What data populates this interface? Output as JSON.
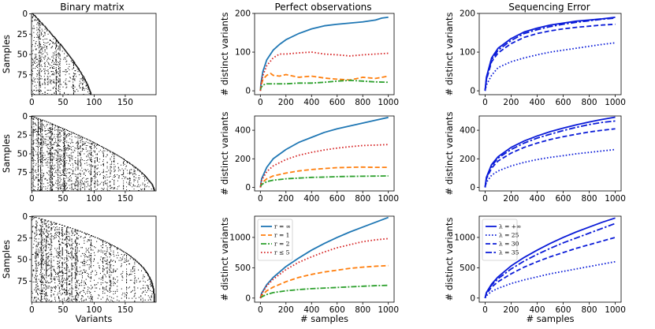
{
  "column_titles": [
    "Binary matrix",
    "Perfect observations",
    "Sequencing Error"
  ],
  "colors": {
    "perfect": {
      "r_inf": "#1f77b4",
      "r_1": "#ff7f0e",
      "r_2": "#2ca02c",
      "r_le_5": "#d62728"
    },
    "error": "#0a1bd8"
  },
  "chart_data": [
    {
      "id": "matrix-1",
      "type": "heatmap",
      "ylabel": "Samples",
      "xlabel": "",
      "xlim": [
        0,
        199
      ],
      "ylim": [
        0,
        99
      ],
      "xticks": [
        "0",
        "50",
        "100",
        "150"
      ],
      "yticks": [
        "0",
        "25",
        "50",
        "75"
      ],
      "staircase": {
        "rows": 100,
        "max_variant": 93,
        "curve_exponent": 1.35
      }
    },
    {
      "id": "matrix-2",
      "type": "heatmap",
      "ylabel": "Samples",
      "xlabel": "",
      "xlim": [
        0,
        199
      ],
      "ylim": [
        0,
        99
      ],
      "xticks": [
        "0",
        "50",
        "100",
        "150"
      ],
      "yticks": [
        "0",
        "25",
        "50",
        "75"
      ],
      "staircase": {
        "rows": 100,
        "max_variant": 195,
        "curve_exponent": 1.6
      }
    },
    {
      "id": "matrix-3",
      "type": "heatmap",
      "ylabel": "Samples",
      "xlabel": "Variants",
      "xlim": [
        0,
        199
      ],
      "ylim": [
        0,
        99
      ],
      "xticks": [
        "0",
        "50",
        "100",
        "150"
      ],
      "yticks": [
        "0",
        "25",
        "50",
        "75"
      ],
      "staircase": {
        "rows": 100,
        "max_variant": 195,
        "curve_exponent": 2.6
      }
    },
    {
      "id": "perfect-1",
      "type": "line",
      "xlabel": "",
      "ylabel": "# distinct variants",
      "xlim": [
        0,
        1000
      ],
      "ylim": [
        0,
        200
      ],
      "xticks": [
        0,
        200,
        400,
        600,
        800,
        1000
      ],
      "yticks": [
        0,
        100,
        200
      ],
      "series": [
        {
          "style": "r_inf",
          "x": [
            0,
            5,
            20,
            50,
            100,
            150,
            200,
            300,
            400,
            500,
            600,
            700,
            800,
            900,
            950,
            1000
          ],
          "y": [
            0,
            20,
            50,
            80,
            105,
            120,
            132,
            148,
            160,
            168,
            172,
            175,
            178,
            183,
            188,
            190
          ]
        },
        {
          "style": "r_1",
          "x": [
            0,
            5,
            20,
            50,
            80,
            100,
            150,
            200,
            300,
            400,
            500,
            600,
            700,
            800,
            900,
            1000
          ],
          "y": [
            0,
            12,
            30,
            40,
            45,
            40,
            38,
            42,
            35,
            38,
            33,
            30,
            28,
            35,
            32,
            38
          ]
        },
        {
          "style": "r_2",
          "x": [
            0,
            5,
            20,
            50,
            100,
            200,
            300,
            400,
            500,
            600,
            700,
            800,
            900,
            1000
          ],
          "y": [
            0,
            8,
            15,
            18,
            18,
            18,
            20,
            20,
            22,
            25,
            27,
            25,
            23,
            22
          ]
        },
        {
          "style": "r_le_5",
          "x": [
            0,
            5,
            20,
            50,
            100,
            150,
            200,
            300,
            400,
            500,
            600,
            700,
            800,
            900,
            1000
          ],
          "y": [
            0,
            15,
            40,
            65,
            85,
            95,
            95,
            98,
            100,
            95,
            93,
            90,
            93,
            95,
            97
          ]
        }
      ]
    },
    {
      "id": "perfect-2",
      "type": "line",
      "xlabel": "",
      "ylabel": "# distinct variants",
      "xlim": [
        0,
        1000
      ],
      "ylim": [
        0,
        500
      ],
      "xticks": [
        0,
        200,
        400,
        600,
        800,
        1000
      ],
      "yticks": [
        0,
        200,
        400
      ],
      "series": [
        {
          "style": "r_inf",
          "x": [
            0,
            10,
            50,
            100,
            200,
            300,
            400,
            500,
            600,
            700,
            800,
            900,
            1000
          ],
          "y": [
            0,
            60,
            140,
            200,
            265,
            315,
            350,
            385,
            410,
            430,
            450,
            470,
            490
          ]
        },
        {
          "style": "r_1",
          "x": [
            0,
            10,
            50,
            100,
            200,
            300,
            400,
            500,
            600,
            700,
            800,
            900,
            1000
          ],
          "y": [
            0,
            30,
            60,
            80,
            100,
            115,
            125,
            132,
            138,
            140,
            142,
            140,
            140
          ]
        },
        {
          "style": "r_2",
          "x": [
            0,
            10,
            50,
            100,
            200,
            300,
            400,
            500,
            600,
            700,
            800,
            900,
            1000
          ],
          "y": [
            0,
            20,
            40,
            50,
            60,
            65,
            70,
            72,
            75,
            77,
            78,
            79,
            80
          ]
        },
        {
          "style": "r_le_5",
          "x": [
            0,
            10,
            50,
            100,
            200,
            300,
            400,
            500,
            600,
            700,
            800,
            900,
            1000
          ],
          "y": [
            0,
            50,
            110,
            150,
            195,
            225,
            245,
            262,
            275,
            285,
            293,
            296,
            300
          ]
        }
      ]
    },
    {
      "id": "perfect-3",
      "type": "line",
      "xlabel": "# samples",
      "ylabel": "# distinct variants",
      "xlim": [
        0,
        1000
      ],
      "ylim": [
        0,
        1350
      ],
      "xticks": [
        0,
        200,
        400,
        600,
        800,
        1000
      ],
      "yticks": [
        0,
        500,
        1000
      ],
      "legend": {
        "placement": "top-left",
        "entries": [
          "r = ∞",
          "r = 1",
          "r = 2",
          "r ≤ 5"
        ]
      },
      "series": [
        {
          "name": "r = ∞",
          "style": "r_inf",
          "x": [
            0,
            10,
            50,
            100,
            200,
            300,
            400,
            500,
            600,
            700,
            800,
            900,
            1000
          ],
          "y": [
            0,
            80,
            220,
            340,
            520,
            660,
            790,
            900,
            1000,
            1090,
            1170,
            1250,
            1330
          ]
        },
        {
          "name": "r = 1",
          "style": "r_1",
          "x": [
            0,
            10,
            50,
            100,
            200,
            300,
            400,
            500,
            600,
            700,
            800,
            900,
            1000
          ],
          "y": [
            0,
            40,
            120,
            180,
            270,
            340,
            390,
            430,
            460,
            490,
            510,
            525,
            535
          ]
        },
        {
          "name": "r = 2",
          "style": "r_2",
          "x": [
            0,
            10,
            50,
            100,
            200,
            300,
            400,
            500,
            600,
            700,
            800,
            900,
            1000
          ],
          "y": [
            0,
            20,
            60,
            90,
            120,
            140,
            155,
            165,
            175,
            185,
            195,
            205,
            210
          ]
        },
        {
          "name": "r ≤ 5",
          "style": "r_le_5",
          "x": [
            0,
            10,
            50,
            100,
            200,
            300,
            400,
            500,
            600,
            700,
            800,
            900,
            1000
          ],
          "y": [
            0,
            70,
            200,
            310,
            470,
            590,
            680,
            760,
            830,
            880,
            930,
            960,
            980
          ]
        }
      ]
    },
    {
      "id": "error-1",
      "type": "line",
      "xlabel": "",
      "ylabel": "# distinct variants",
      "xlim": [
        0,
        1000
      ],
      "ylim": [
        0,
        200
      ],
      "xticks": [
        0,
        200,
        400,
        600,
        800,
        1000
      ],
      "yticks": [
        0,
        100,
        200
      ],
      "series": [
        {
          "style": "solid",
          "x": [
            0,
            10,
            50,
            100,
            200,
            300,
            400,
            500,
            600,
            700,
            800,
            900,
            1000
          ],
          "y": [
            0,
            35,
            85,
            110,
            135,
            152,
            162,
            170,
            175,
            180,
            183,
            186,
            190
          ]
        },
        {
          "style": "dashdot",
          "x": [
            0,
            10,
            50,
            100,
            200,
            300,
            400,
            500,
            600,
            700,
            800,
            900,
            1000
          ],
          "y": [
            0,
            30,
            80,
            105,
            130,
            148,
            158,
            166,
            172,
            177,
            181,
            185,
            188
          ]
        },
        {
          "style": "dashed",
          "x": [
            0,
            10,
            50,
            100,
            200,
            300,
            400,
            500,
            600,
            700,
            800,
            900,
            1000
          ],
          "y": [
            0,
            28,
            75,
            98,
            122,
            138,
            148,
            155,
            160,
            164,
            167,
            170,
            172
          ]
        },
        {
          "style": "dotted",
          "x": [
            0,
            10,
            50,
            100,
            200,
            300,
            400,
            500,
            600,
            700,
            800,
            900,
            1000
          ],
          "y": [
            0,
            15,
            40,
            60,
            75,
            85,
            93,
            100,
            105,
            110,
            115,
            120,
            124
          ]
        }
      ]
    },
    {
      "id": "error-2",
      "type": "line",
      "xlabel": "",
      "ylabel": "# distinct variants",
      "xlim": [
        0,
        1000
      ],
      "ylim": [
        0,
        500
      ],
      "xticks": [
        0,
        200,
        400,
        600,
        800,
        1000
      ],
      "yticks": [
        0,
        200,
        400
      ],
      "series": [
        {
          "style": "solid",
          "x": [
            0,
            10,
            50,
            100,
            200,
            300,
            400,
            500,
            600,
            700,
            800,
            900,
            1000
          ],
          "y": [
            0,
            70,
            160,
            215,
            280,
            325,
            360,
            390,
            415,
            438,
            458,
            476,
            492
          ]
        },
        {
          "style": "dashdot",
          "x": [
            0,
            10,
            50,
            100,
            200,
            300,
            400,
            500,
            600,
            700,
            800,
            900,
            1000
          ],
          "y": [
            0,
            65,
            150,
            205,
            265,
            310,
            345,
            372,
            398,
            420,
            440,
            455,
            465
          ]
        },
        {
          "style": "dashed",
          "x": [
            0,
            10,
            50,
            100,
            200,
            300,
            400,
            500,
            600,
            700,
            800,
            900,
            1000
          ],
          "y": [
            0,
            60,
            135,
            185,
            240,
            280,
            310,
            335,
            355,
            372,
            388,
            400,
            410
          ]
        },
        {
          "style": "dotted",
          "x": [
            0,
            10,
            50,
            100,
            200,
            300,
            400,
            500,
            600,
            700,
            800,
            900,
            1000
          ],
          "y": [
            0,
            35,
            85,
            115,
            150,
            175,
            195,
            210,
            222,
            235,
            245,
            255,
            265
          ]
        }
      ]
    },
    {
      "id": "error-3",
      "type": "line",
      "xlabel": "# samples",
      "ylabel": "# distinct variants",
      "xlim": [
        0,
        1000
      ],
      "ylim": [
        0,
        1350
      ],
      "xticks": [
        0,
        200,
        400,
        600,
        800,
        1000
      ],
      "yticks": [
        0,
        500,
        1000
      ],
      "legend": {
        "placement": "top-left",
        "entries": [
          "λ = +∞",
          "λ = 25",
          "λ = 30",
          "λ = 35"
        ]
      },
      "series": [
        {
          "name": "λ = +∞",
          "style": "solid",
          "x": [
            0,
            10,
            50,
            100,
            200,
            300,
            400,
            500,
            600,
            700,
            800,
            900,
            1000
          ],
          "y": [
            0,
            90,
            230,
            350,
            530,
            670,
            790,
            900,
            1000,
            1090,
            1170,
            1250,
            1320
          ]
        },
        {
          "name": "λ = 25",
          "style": "dotted",
          "x": [
            0,
            10,
            50,
            100,
            200,
            300,
            400,
            500,
            600,
            700,
            800,
            900,
            1000
          ],
          "y": [
            0,
            40,
            110,
            160,
            240,
            300,
            350,
            400,
            440,
            480,
            520,
            560,
            600
          ]
        },
        {
          "name": "λ = 30",
          "style": "dashed",
          "x": [
            0,
            10,
            50,
            100,
            200,
            300,
            400,
            500,
            600,
            700,
            800,
            900,
            1000
          ],
          "y": [
            0,
            70,
            180,
            270,
            400,
            510,
            600,
            680,
            750,
            820,
            880,
            940,
            1000
          ]
        },
        {
          "name": "λ = 35",
          "style": "dashdot",
          "x": [
            0,
            10,
            50,
            100,
            200,
            300,
            400,
            500,
            600,
            700,
            800,
            900,
            1000
          ],
          "y": [
            0,
            85,
            215,
            320,
            480,
            610,
            720,
            820,
            910,
            990,
            1070,
            1150,
            1230
          ]
        }
      ]
    }
  ]
}
